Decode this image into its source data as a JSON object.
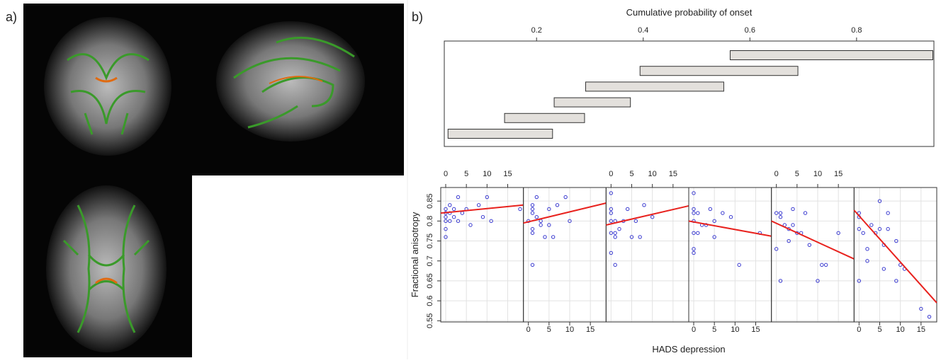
{
  "panel_labels": [
    "a)",
    "b)"
  ],
  "chart_data": [
    {
      "type": "interval",
      "title": "Cumulative probability of onset",
      "xlim": [
        0.027,
        0.945
      ],
      "xticks": [
        0.2,
        0.4,
        0.6,
        0.8
      ],
      "intervals": [
        [
          0.034,
          0.23
        ],
        [
          0.14,
          0.29
        ],
        [
          0.233,
          0.376
        ],
        [
          0.292,
          0.551
        ],
        [
          0.394,
          0.69
        ],
        [
          0.563,
          0.943
        ]
      ],
      "color": "#e3e0dc"
    },
    {
      "type": "scatter",
      "xlabel": "HADS depression",
      "ylabel": "Fractional anisotropy",
      "xlim": [
        -1.2,
        18.8
      ],
      "ylim": [
        0.547,
        0.884
      ],
      "xticks": [
        0,
        5,
        10,
        15
      ],
      "yticks": [
        0.55,
        0.6,
        0.65,
        0.7,
        0.75,
        0.8,
        0.85
      ],
      "color": "#3a3ad0",
      "fit_color": "#e8221e",
      "grid": true,
      "panels": [
        {
          "x": [
            0,
            0,
            0,
            0,
            0,
            0,
            1,
            1,
            1,
            2,
            2,
            3,
            3,
            4,
            5,
            6,
            8,
            9,
            10,
            11,
            18
          ],
          "y": [
            0.83,
            0.82,
            0.81,
            0.8,
            0.78,
            0.76,
            0.84,
            0.82,
            0.8,
            0.83,
            0.81,
            0.86,
            0.8,
            0.82,
            0.83,
            0.79,
            0.84,
            0.81,
            0.86,
            0.8,
            0.83
          ],
          "fit_x": [
            -1.2,
            18.8
          ],
          "fit_y": [
            0.82,
            0.84
          ]
        },
        {
          "x": [
            0,
            1,
            1,
            1,
            1,
            1,
            1,
            2,
            2,
            3,
            3,
            4,
            5,
            5,
            6,
            7,
            9,
            10
          ],
          "y": [
            0.8,
            0.84,
            0.83,
            0.82,
            0.78,
            0.77,
            0.69,
            0.86,
            0.81,
            0.8,
            0.79,
            0.76,
            0.79,
            0.83,
            0.76,
            0.84,
            0.86,
            0.8
          ],
          "fit_x": [
            -1.2,
            18.8
          ],
          "fit_y": [
            0.795,
            0.845
          ]
        },
        {
          "x": [
            0,
            0,
            0,
            0,
            0,
            0,
            1,
            1,
            1,
            1,
            2,
            3,
            4,
            5,
            6,
            7,
            8,
            10
          ],
          "y": [
            0.87,
            0.83,
            0.82,
            0.8,
            0.77,
            0.72,
            0.8,
            0.77,
            0.76,
            0.69,
            0.78,
            0.8,
            0.83,
            0.76,
            0.8,
            0.76,
            0.84,
            0.81
          ],
          "fit_x": [
            -1.2,
            18.8
          ],
          "fit_y": [
            0.79,
            0.838
          ]
        },
        {
          "x": [
            0,
            0,
            0,
            0,
            0,
            0,
            0,
            1,
            1,
            2,
            3,
            4,
            5,
            5,
            7,
            9,
            11,
            16
          ],
          "y": [
            0.87,
            0.83,
            0.82,
            0.8,
            0.77,
            0.73,
            0.72,
            0.82,
            0.77,
            0.79,
            0.79,
            0.83,
            0.8,
            0.76,
            0.82,
            0.81,
            0.69,
            0.77
          ],
          "fit_x": [
            -1.2,
            18.8
          ],
          "fit_y": [
            0.8,
            0.762
          ]
        },
        {
          "x": [
            0,
            0,
            1,
            1,
            1,
            2,
            3,
            3,
            4,
            4,
            5,
            6,
            7,
            8,
            10,
            11,
            12,
            15
          ],
          "y": [
            0.82,
            0.73,
            0.82,
            0.81,
            0.65,
            0.79,
            0.78,
            0.75,
            0.83,
            0.79,
            0.77,
            0.77,
            0.82,
            0.74,
            0.65,
            0.69,
            0.69,
            0.77
          ],
          "fit_x": [
            -1.2,
            18.8
          ],
          "fit_y": [
            0.8,
            0.705
          ]
        },
        {
          "x": [
            0,
            0,
            0,
            0,
            1,
            2,
            2,
            3,
            4,
            5,
            5,
            6,
            6,
            7,
            7,
            9,
            9,
            10,
            11,
            15,
            17
          ],
          "y": [
            0.82,
            0.81,
            0.78,
            0.65,
            0.77,
            0.73,
            0.7,
            0.79,
            0.77,
            0.85,
            0.78,
            0.74,
            0.68,
            0.82,
            0.78,
            0.75,
            0.65,
            0.69,
            0.68,
            0.58,
            0.56
          ],
          "fit_x": [
            -1.2,
            18.8
          ],
          "fit_y": [
            0.827,
            0.595
          ]
        }
      ]
    }
  ]
}
